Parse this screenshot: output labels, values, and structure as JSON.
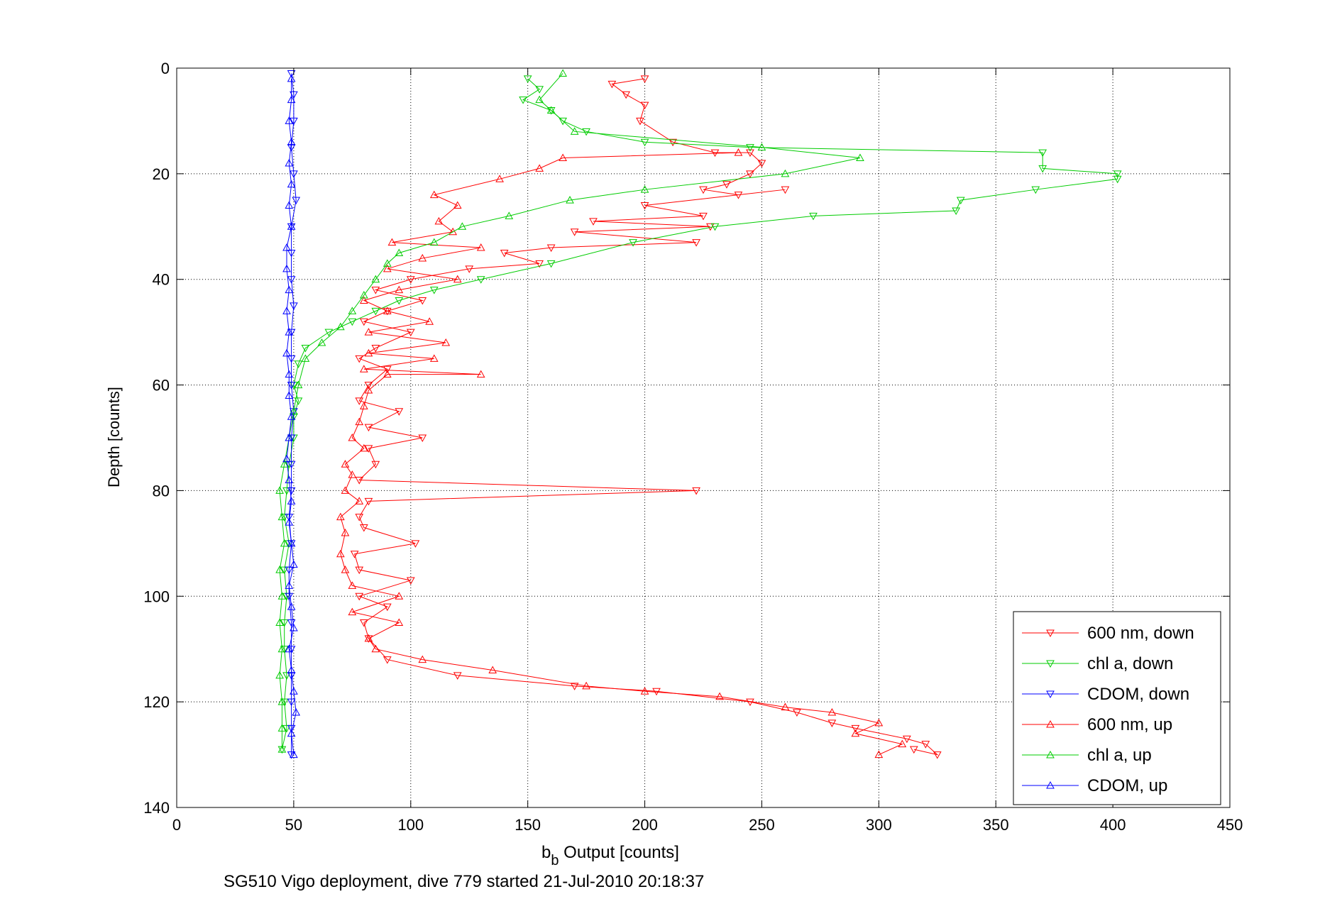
{
  "chart_data": {
    "type": "line",
    "title": "",
    "xlabel_main": "b",
    "xlabel_sub": "b",
    "xlabel_rest": " Output [counts]",
    "ylabel": "Depth [counts]",
    "caption": "SG510 Vigo deployment, dive 779 started 21-Jul-2010 20:18:37",
    "xlim": [
      0,
      450
    ],
    "ylim": [
      0,
      140
    ],
    "y_reversed": true,
    "grid": true,
    "xticks": [
      0,
      50,
      100,
      150,
      200,
      250,
      300,
      350,
      400,
      450
    ],
    "yticks": [
      0,
      20,
      40,
      60,
      80,
      100,
      120,
      140
    ],
    "legend_position": "bottom-right",
    "series": [
      {
        "name": "600 nm, down",
        "color": "#ff0000",
        "marker": "down",
        "points": [
          [
            200,
            2
          ],
          [
            186,
            3
          ],
          [
            192,
            5
          ],
          [
            200,
            7
          ],
          [
            198,
            10
          ],
          [
            212,
            14
          ],
          [
            230,
            16
          ],
          [
            245,
            16
          ],
          [
            250,
            18
          ],
          [
            245,
            20
          ],
          [
            235,
            22
          ],
          [
            225,
            23
          ],
          [
            240,
            24
          ],
          [
            260,
            23
          ],
          [
            200,
            26
          ],
          [
            225,
            28
          ],
          [
            178,
            29
          ],
          [
            228,
            30
          ],
          [
            170,
            31
          ],
          [
            222,
            33
          ],
          [
            160,
            34
          ],
          [
            140,
            35
          ],
          [
            155,
            37
          ],
          [
            125,
            38
          ],
          [
            100,
            40
          ],
          [
            85,
            42
          ],
          [
            105,
            44
          ],
          [
            90,
            46
          ],
          [
            80,
            48
          ],
          [
            100,
            50
          ],
          [
            85,
            53
          ],
          [
            78,
            55
          ],
          [
            90,
            57
          ],
          [
            82,
            60
          ],
          [
            78,
            63
          ],
          [
            95,
            65
          ],
          [
            82,
            68
          ],
          [
            105,
            70
          ],
          [
            82,
            72
          ],
          [
            85,
            75
          ],
          [
            78,
            78
          ],
          [
            222,
            80
          ],
          [
            82,
            82
          ],
          [
            78,
            85
          ],
          [
            80,
            87
          ],
          [
            102,
            90
          ],
          [
            76,
            92
          ],
          [
            78,
            95
          ],
          [
            100,
            97
          ],
          [
            78,
            100
          ],
          [
            90,
            102
          ],
          [
            80,
            105
          ],
          [
            82,
            108
          ],
          [
            90,
            112
          ],
          [
            120,
            115
          ],
          [
            170,
            117
          ],
          [
            205,
            118
          ],
          [
            245,
            120
          ],
          [
            265,
            122
          ],
          [
            280,
            124
          ],
          [
            290,
            125
          ],
          [
            312,
            127
          ],
          [
            320,
            128
          ],
          [
            325,
            130
          ],
          [
            315,
            129
          ]
        ]
      },
      {
        "name": "chl a, down",
        "color": "#00cc00",
        "marker": "down",
        "points": [
          [
            150,
            2
          ],
          [
            155,
            4
          ],
          [
            148,
            6
          ],
          [
            160,
            8
          ],
          [
            165,
            10
          ],
          [
            175,
            12
          ],
          [
            200,
            14
          ],
          [
            245,
            15
          ],
          [
            370,
            16
          ],
          [
            370,
            19
          ],
          [
            402,
            20
          ],
          [
            402,
            21
          ],
          [
            367,
            23
          ],
          [
            335,
            25
          ],
          [
            333,
            27
          ],
          [
            272,
            28
          ],
          [
            230,
            30
          ],
          [
            195,
            33
          ],
          [
            160,
            37
          ],
          [
            130,
            40
          ],
          [
            110,
            42
          ],
          [
            95,
            44
          ],
          [
            85,
            46
          ],
          [
            75,
            48
          ],
          [
            65,
            50
          ],
          [
            55,
            53
          ],
          [
            52,
            56
          ],
          [
            50,
            60
          ],
          [
            52,
            63
          ],
          [
            50,
            66
          ],
          [
            50,
            70
          ],
          [
            48,
            75
          ],
          [
            47,
            80
          ],
          [
            46,
            85
          ],
          [
            48,
            90
          ],
          [
            46,
            95
          ],
          [
            47,
            100
          ],
          [
            46,
            105
          ],
          [
            46,
            110
          ],
          [
            47,
            115
          ],
          [
            46,
            120
          ],
          [
            47,
            125
          ],
          [
            45,
            129
          ]
        ]
      },
      {
        "name": "CDOM, down",
        "color": "#0000ff",
        "marker": "down",
        "points": [
          [
            49,
            1
          ],
          [
            50,
            5
          ],
          [
            50,
            10
          ],
          [
            49,
            15
          ],
          [
            50,
            20
          ],
          [
            51,
            25
          ],
          [
            49,
            30
          ],
          [
            49,
            35
          ],
          [
            49,
            40
          ],
          [
            50,
            45
          ],
          [
            49,
            50
          ],
          [
            49,
            55
          ],
          [
            49,
            60
          ],
          [
            50,
            65
          ],
          [
            49,
            70
          ],
          [
            49,
            75
          ],
          [
            49,
            80
          ],
          [
            48,
            85
          ],
          [
            49,
            90
          ],
          [
            48,
            95
          ],
          [
            48,
            100
          ],
          [
            49,
            105
          ],
          [
            49,
            110
          ],
          [
            49,
            115
          ],
          [
            49,
            120
          ],
          [
            49,
            125
          ],
          [
            49,
            130
          ]
        ]
      },
      {
        "name": "600 nm, up",
        "color": "#ff0000",
        "marker": "up",
        "points": [
          [
            300,
            130
          ],
          [
            310,
            128
          ],
          [
            290,
            126
          ],
          [
            300,
            124
          ],
          [
            280,
            122
          ],
          [
            260,
            121
          ],
          [
            232,
            119
          ],
          [
            200,
            118
          ],
          [
            175,
            117
          ],
          [
            135,
            114
          ],
          [
            105,
            112
          ],
          [
            85,
            110
          ],
          [
            82,
            108
          ],
          [
            95,
            105
          ],
          [
            75,
            103
          ],
          [
            95,
            100
          ],
          [
            75,
            98
          ],
          [
            72,
            95
          ],
          [
            70,
            92
          ],
          [
            72,
            88
          ],
          [
            70,
            85
          ],
          [
            78,
            82
          ],
          [
            72,
            80
          ],
          [
            75,
            77
          ],
          [
            72,
            75
          ],
          [
            80,
            72
          ],
          [
            75,
            70
          ],
          [
            78,
            67
          ],
          [
            80,
            64
          ],
          [
            82,
            61
          ],
          [
            90,
            58
          ],
          [
            130,
            58
          ],
          [
            80,
            57
          ],
          [
            110,
            55
          ],
          [
            82,
            54
          ],
          [
            115,
            52
          ],
          [
            82,
            50
          ],
          [
            108,
            48
          ],
          [
            90,
            46
          ],
          [
            80,
            44
          ],
          [
            95,
            42
          ],
          [
            120,
            40
          ],
          [
            90,
            38
          ],
          [
            105,
            36
          ],
          [
            130,
            34
          ],
          [
            92,
            33
          ],
          [
            118,
            31
          ],
          [
            112,
            29
          ],
          [
            120,
            26
          ],
          [
            110,
            24
          ],
          [
            138,
            21
          ],
          [
            155,
            19
          ],
          [
            165,
            17
          ],
          [
            240,
            16
          ]
        ]
      },
      {
        "name": "chl a, up",
        "color": "#00cc00",
        "marker": "up",
        "points": [
          [
            45,
            129
          ],
          [
            45,
            125
          ],
          [
            45,
            120
          ],
          [
            44,
            115
          ],
          [
            45,
            110
          ],
          [
            44,
            105
          ],
          [
            45,
            100
          ],
          [
            44,
            95
          ],
          [
            46,
            90
          ],
          [
            45,
            85
          ],
          [
            44,
            80
          ],
          [
            46,
            75
          ],
          [
            48,
            70
          ],
          [
            50,
            65
          ],
          [
            52,
            60
          ],
          [
            55,
            55
          ],
          [
            62,
            52
          ],
          [
            70,
            49
          ],
          [
            75,
            46
          ],
          [
            80,
            43
          ],
          [
            85,
            40
          ],
          [
            90,
            37
          ],
          [
            95,
            35
          ],
          [
            110,
            33
          ],
          [
            122,
            30
          ],
          [
            142,
            28
          ],
          [
            168,
            25
          ],
          [
            200,
            23
          ],
          [
            260,
            20
          ],
          [
            292,
            17
          ],
          [
            250,
            15
          ],
          [
            170,
            12
          ],
          [
            160,
            8
          ],
          [
            155,
            6
          ],
          [
            165,
            1
          ]
        ]
      },
      {
        "name": "CDOM, up",
        "color": "#0000ff",
        "marker": "up",
        "points": [
          [
            50,
            130
          ],
          [
            49,
            126
          ],
          [
            51,
            122
          ],
          [
            50,
            118
          ],
          [
            49,
            114
          ],
          [
            48,
            110
          ],
          [
            50,
            106
          ],
          [
            49,
            102
          ],
          [
            48,
            98
          ],
          [
            50,
            94
          ],
          [
            49,
            90
          ],
          [
            48,
            86
          ],
          [
            49,
            82
          ],
          [
            48,
            78
          ],
          [
            47,
            74
          ],
          [
            48,
            70
          ],
          [
            49,
            66
          ],
          [
            48,
            62
          ],
          [
            48,
            58
          ],
          [
            47,
            54
          ],
          [
            48,
            50
          ],
          [
            47,
            46
          ],
          [
            48,
            42
          ],
          [
            47,
            38
          ],
          [
            47,
            34
          ],
          [
            49,
            30
          ],
          [
            48,
            26
          ],
          [
            49,
            22
          ],
          [
            48,
            18
          ],
          [
            49,
            14
          ],
          [
            48,
            10
          ],
          [
            49,
            6
          ],
          [
            49,
            2
          ]
        ]
      }
    ]
  }
}
